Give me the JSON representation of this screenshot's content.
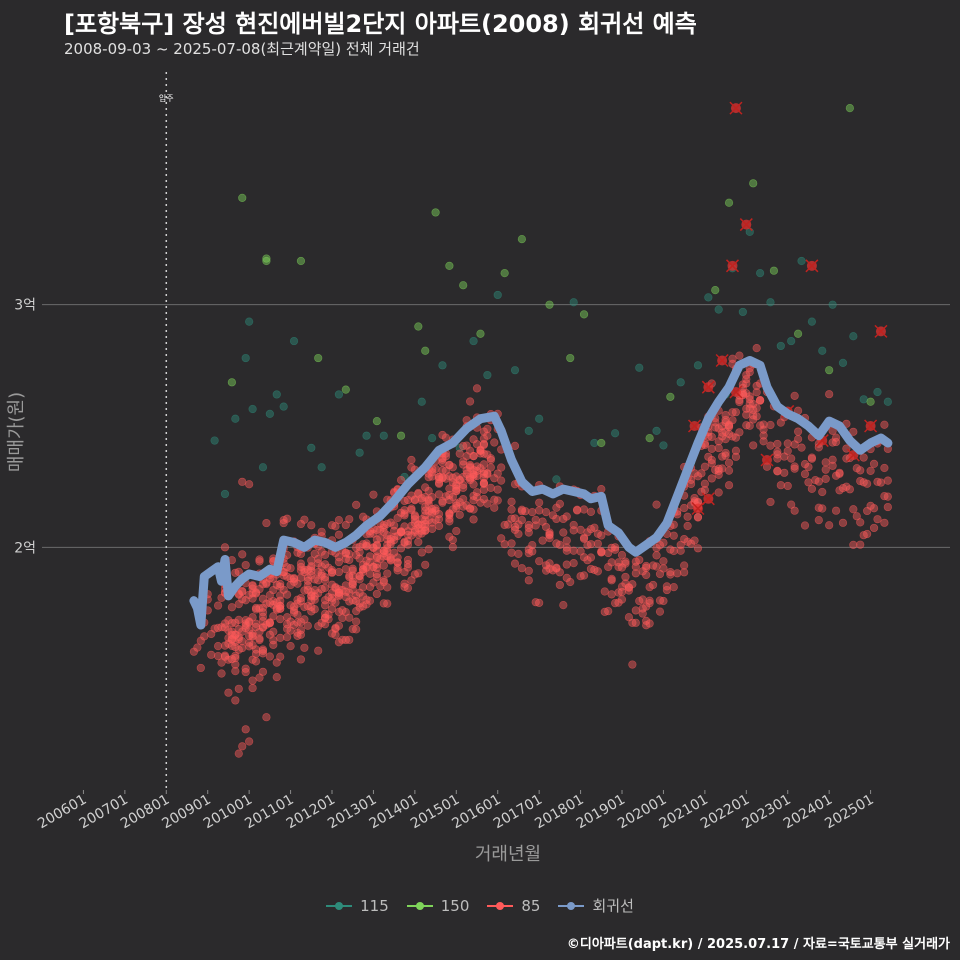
{
  "header": {
    "title": "[포항북구] 장성 현진에버빌2단지 아파트(2008) 회귀선 예측",
    "subtitle": "2008-09-03 ~ 2025-07-08(최근계약일) 전체 거래건"
  },
  "footer": {
    "credit": "©디아파트(dapt.kr) / 2025.07.17 / 자료=국토교통부 실거래가"
  },
  "colors": {
    "background": "#2b2a2c",
    "s115": "#2e8b7a",
    "s150": "#7fd45a",
    "s85": "#ff5a5a",
    "regression": "#7a9ac9",
    "grid": "#6b6b6b"
  },
  "chart_data": {
    "type": "scatter",
    "title": "[포항북구] 장성 현진에버빌2단지 아파트(2008) 회귀선 예측",
    "subtitle": "2008-09-03 ~ 2025-07-08(최근계약일) 전체 거래건",
    "xlabel": "거래년월",
    "ylabel": "매매가(원)",
    "x_unit": "year-month",
    "xlim": [
      "2005-01",
      "2026-12"
    ],
    "ylim": [
      10000,
      40000
    ],
    "y_unit": "만원",
    "x_ticks": [
      "200601",
      "200701",
      "200801",
      "200901",
      "201001",
      "201101",
      "201201",
      "201301",
      "201401",
      "201501",
      "201601",
      "201701",
      "201801",
      "201901",
      "202001",
      "202101",
      "202201",
      "202301",
      "202401",
      "202501"
    ],
    "y_ticks": [
      {
        "value": 20000,
        "label": "2억"
      },
      {
        "value": 30000,
        "label": "3억"
      }
    ],
    "vline": {
      "x": "2008-01",
      "label": "입주"
    },
    "grid": true,
    "legend_position": "bottom",
    "series": [
      {
        "name": "115",
        "color": "#2e8b7a",
        "points": [
          [
            "2009-03",
            24400
          ],
          [
            "2009-06",
            22200
          ],
          [
            "2009-09",
            25300
          ],
          [
            "2009-12",
            27800
          ],
          [
            "2010-01",
            29300
          ],
          [
            "2010-02",
            25700
          ],
          [
            "2010-05",
            23300
          ],
          [
            "2010-07",
            25500
          ],
          [
            "2010-09",
            26300
          ],
          [
            "2010-11",
            25800
          ],
          [
            "2011-02",
            28500
          ],
          [
            "2011-07",
            24100
          ],
          [
            "2011-10",
            23300
          ],
          [
            "2012-03",
            26300
          ],
          [
            "2012-09",
            23900
          ],
          [
            "2012-11",
            24600
          ],
          [
            "2013-04",
            24600
          ],
          [
            "2013-10",
            22900
          ],
          [
            "2014-03",
            26000
          ],
          [
            "2014-06",
            24500
          ],
          [
            "2014-09",
            27500
          ],
          [
            "2015-02",
            24100
          ],
          [
            "2015-06",
            28500
          ],
          [
            "2015-10",
            27100
          ],
          [
            "2016-01",
            30400
          ],
          [
            "2016-06",
            27300
          ],
          [
            "2016-10",
            24800
          ],
          [
            "2017-01",
            25300
          ],
          [
            "2017-06",
            22800
          ],
          [
            "2017-11",
            30100
          ],
          [
            "2018-05",
            24300
          ],
          [
            "2018-11",
            24700
          ],
          [
            "2019-06",
            27400
          ],
          [
            "2019-11",
            24800
          ],
          [
            "2020-01",
            24200
          ],
          [
            "2020-06",
            26800
          ],
          [
            "2020-11",
            27500
          ],
          [
            "2021-02",
            30300
          ],
          [
            "2021-05",
            29800
          ],
          [
            "2021-07",
            26300
          ],
          [
            "2021-09",
            31500
          ],
          [
            "2021-12",
            29700
          ],
          [
            "2022-02",
            33000
          ],
          [
            "2022-05",
            31300
          ],
          [
            "2022-08",
            30100
          ],
          [
            "2022-11",
            28300
          ],
          [
            "2023-02",
            28500
          ],
          [
            "2023-05",
            31800
          ],
          [
            "2023-08",
            29300
          ],
          [
            "2023-11",
            28100
          ],
          [
            "2024-02",
            30000
          ],
          [
            "2024-05",
            27600
          ],
          [
            "2024-08",
            28700
          ],
          [
            "2024-11",
            26100
          ],
          [
            "2025-03",
            26400
          ],
          [
            "2025-06",
            26000
          ]
        ]
      },
      {
        "name": "150",
        "color": "#7fd45a",
        "points": [
          [
            "2009-08",
            26800
          ],
          [
            "2009-11",
            34400
          ],
          [
            "2010-06",
            31900
          ],
          [
            "2010-06",
            31800
          ],
          [
            "2011-04",
            31800
          ],
          [
            "2011-09",
            27800
          ],
          [
            "2012-05",
            26500
          ],
          [
            "2013-02",
            25200
          ],
          [
            "2013-09",
            24600
          ],
          [
            "2014-02",
            29100
          ],
          [
            "2014-04",
            28100
          ],
          [
            "2014-07",
            33800
          ],
          [
            "2014-11",
            31600
          ],
          [
            "2015-03",
            30800
          ],
          [
            "2015-08",
            28800
          ],
          [
            "2016-03",
            31300
          ],
          [
            "2016-08",
            32700
          ],
          [
            "2017-04",
            30000
          ],
          [
            "2017-10",
            27800
          ],
          [
            "2018-02",
            29600
          ],
          [
            "2018-07",
            24300
          ],
          [
            "2019-09",
            24500
          ],
          [
            "2020-03",
            26200
          ],
          [
            "2020-09",
            23500
          ],
          [
            "2021-04",
            30600
          ],
          [
            "2021-08",
            34200
          ],
          [
            "2022-03",
            35000
          ],
          [
            "2022-09",
            31400
          ],
          [
            "2023-04",
            28800
          ],
          [
            "2024-01",
            27300
          ],
          [
            "2024-07",
            38100
          ],
          [
            "2025-01",
            26000
          ]
        ]
      },
      {
        "name": "85",
        "color": "#ff5a5a",
        "points": []
      },
      {
        "name": "회귀선",
        "color": "#7a9ac9",
        "type": "line",
        "points": [
          [
            "2008-09",
            17800
          ],
          [
            "2008-10",
            17500
          ],
          [
            "2008-11",
            16800
          ],
          [
            "2008-12",
            18800
          ],
          [
            "2009-02",
            19000
          ],
          [
            "2009-04",
            19200
          ],
          [
            "2009-05",
            18600
          ],
          [
            "2009-06",
            19500
          ],
          [
            "2009-07",
            18000
          ],
          [
            "2009-09",
            18400
          ],
          [
            "2009-11",
            18700
          ],
          [
            "2010-01",
            18900
          ],
          [
            "2010-04",
            18800
          ],
          [
            "2010-07",
            19100
          ],
          [
            "2010-09",
            19000
          ],
          [
            "2010-11",
            20300
          ],
          [
            "2011-02",
            20200
          ],
          [
            "2011-05",
            20000
          ],
          [
            "2011-08",
            20300
          ],
          [
            "2011-11",
            20200
          ],
          [
            "2012-02",
            20000
          ],
          [
            "2012-05",
            20200
          ],
          [
            "2012-08",
            20500
          ],
          [
            "2012-11",
            20900
          ],
          [
            "2013-03",
            21300
          ],
          [
            "2013-07",
            21900
          ],
          [
            "2013-11",
            22600
          ],
          [
            "2014-04",
            23300
          ],
          [
            "2014-08",
            24000
          ],
          [
            "2014-12",
            24300
          ],
          [
            "2015-04",
            24900
          ],
          [
            "2015-08",
            25300
          ],
          [
            "2015-12",
            25400
          ],
          [
            "2016-02",
            24800
          ],
          [
            "2016-05",
            23600
          ],
          [
            "2016-08",
            22700
          ],
          [
            "2016-11",
            22300
          ],
          [
            "2017-02",
            22400
          ],
          [
            "2017-05",
            22200
          ],
          [
            "2017-08",
            22400
          ],
          [
            "2017-11",
            22300
          ],
          [
            "2018-02",
            22200
          ],
          [
            "2018-04",
            22000
          ],
          [
            "2018-07",
            22100
          ],
          [
            "2018-09",
            20900
          ],
          [
            "2018-12",
            20600
          ],
          [
            "2019-03",
            20000
          ],
          [
            "2019-05",
            19800
          ],
          [
            "2019-08",
            20100
          ],
          [
            "2019-11",
            20400
          ],
          [
            "2020-02",
            21000
          ],
          [
            "2020-05",
            22100
          ],
          [
            "2020-08",
            23200
          ],
          [
            "2020-11",
            24300
          ],
          [
            "2021-02",
            25300
          ],
          [
            "2021-05",
            26000
          ],
          [
            "2021-08",
            26600
          ],
          [
            "2021-11",
            27500
          ],
          [
            "2022-02",
            27700
          ],
          [
            "2022-05",
            27500
          ],
          [
            "2022-07",
            26600
          ],
          [
            "2022-10",
            25800
          ],
          [
            "2023-01",
            25500
          ],
          [
            "2023-04",
            25300
          ],
          [
            "2023-07",
            25000
          ],
          [
            "2023-10",
            24600
          ],
          [
            "2024-01",
            25200
          ],
          [
            "2024-04",
            25000
          ],
          [
            "2024-07",
            24400
          ],
          [
            "2024-10",
            24000
          ],
          [
            "2025-01",
            24300
          ],
          [
            "2025-04",
            24500
          ],
          [
            "2025-06",
            24300
          ]
        ]
      }
    ],
    "x_marked_points": [
      [
        "2021-10",
        38100
      ],
      [
        "2022-01",
        33300
      ],
      [
        "2021-09",
        31600
      ],
      [
        "2023-08",
        31600
      ],
      [
        "2025-04",
        28900
      ],
      [
        "2021-06",
        27700
      ],
      [
        "2021-10",
        26400
      ],
      [
        "2020-10",
        25000
      ],
      [
        "2021-02",
        26600
      ],
      [
        "2022-07",
        23600
      ],
      [
        "2023-01",
        25600
      ],
      [
        "2023-11",
        24400
      ],
      [
        "2024-08",
        23800
      ],
      [
        "2025-01",
        25000
      ],
      [
        "2021-02",
        22000
      ],
      [
        "2020-11",
        21600
      ]
    ]
  },
  "legend": {
    "items": [
      {
        "label": "115",
        "color": "#2e8b7a"
      },
      {
        "label": "150",
        "color": "#7fd45a"
      },
      {
        "label": "85",
        "color": "#ff5a5a"
      },
      {
        "label": "회귀선",
        "color": "#7a9ac9"
      }
    ]
  }
}
